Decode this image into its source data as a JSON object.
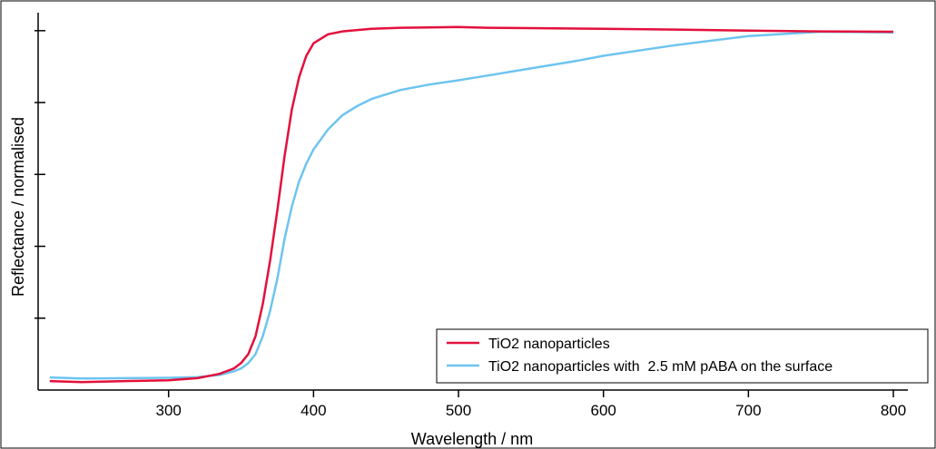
{
  "chart_data": {
    "type": "line",
    "xlabel": "Wavelength / nm",
    "ylabel": "Reflectance / normalised",
    "xlim": [
      210,
      810
    ],
    "ylim": [
      0,
      1.05
    ],
    "x_ticks": [
      "300",
      "400",
      "500",
      "600",
      "700",
      "800"
    ],
    "y_tick_labels_shown": false,
    "grid": false,
    "legend_position": "bottom-right",
    "series": [
      {
        "name": "TiO2 nanoparticles",
        "color": "#e3103c",
        "points": [
          [
            218,
            0.025
          ],
          [
            240,
            0.022
          ],
          [
            270,
            0.025
          ],
          [
            300,
            0.027
          ],
          [
            320,
            0.033
          ],
          [
            335,
            0.045
          ],
          [
            345,
            0.06
          ],
          [
            350,
            0.075
          ],
          [
            355,
            0.1
          ],
          [
            360,
            0.15
          ],
          [
            365,
            0.24
          ],
          [
            370,
            0.36
          ],
          [
            375,
            0.5
          ],
          [
            380,
            0.65
          ],
          [
            385,
            0.78
          ],
          [
            390,
            0.87
          ],
          [
            395,
            0.93
          ],
          [
            400,
            0.965
          ],
          [
            410,
            0.99
          ],
          [
            420,
            0.998
          ],
          [
            440,
            1.005
          ],
          [
            460,
            1.008
          ],
          [
            480,
            1.009
          ],
          [
            500,
            1.01
          ],
          [
            520,
            1.008
          ],
          [
            550,
            1.007
          ],
          [
            600,
            1.005
          ],
          [
            650,
            1.003
          ],
          [
            700,
            1.0
          ],
          [
            750,
            0.998
          ],
          [
            800,
            0.997
          ]
        ]
      },
      {
        "name": "TiO2 nanoparticles with  2.5 mM pABA on the surface",
        "color": "#6ec4ef",
        "points": [
          [
            218,
            0.035
          ],
          [
            240,
            0.032
          ],
          [
            270,
            0.033
          ],
          [
            300,
            0.034
          ],
          [
            320,
            0.036
          ],
          [
            335,
            0.042
          ],
          [
            345,
            0.052
          ],
          [
            350,
            0.06
          ],
          [
            355,
            0.075
          ],
          [
            360,
            0.1
          ],
          [
            365,
            0.15
          ],
          [
            370,
            0.22
          ],
          [
            375,
            0.31
          ],
          [
            380,
            0.42
          ],
          [
            385,
            0.51
          ],
          [
            390,
            0.58
          ],
          [
            395,
            0.63
          ],
          [
            400,
            0.67
          ],
          [
            410,
            0.725
          ],
          [
            420,
            0.765
          ],
          [
            430,
            0.79
          ],
          [
            440,
            0.81
          ],
          [
            460,
            0.835
          ],
          [
            480,
            0.85
          ],
          [
            500,
            0.862
          ],
          [
            520,
            0.875
          ],
          [
            550,
            0.895
          ],
          [
            580,
            0.915
          ],
          [
            600,
            0.93
          ],
          [
            650,
            0.96
          ],
          [
            700,
            0.985
          ],
          [
            750,
            0.997
          ],
          [
            800,
            0.995
          ]
        ]
      }
    ]
  }
}
